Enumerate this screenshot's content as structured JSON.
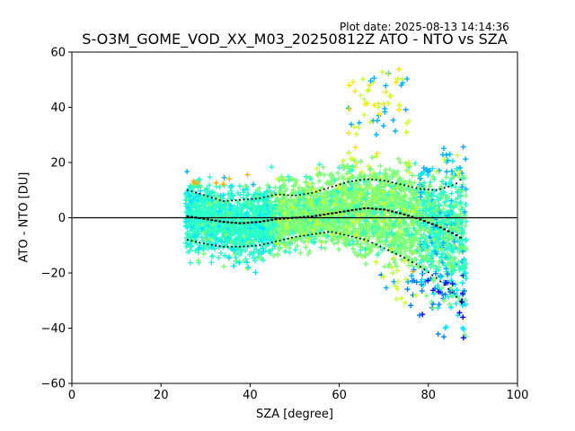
{
  "header": {
    "plot_date": "Plot date: 2025-08-13 14:14:36",
    "title": "S-O3M_GOME_VOD_XX_M03_20250812Z ATO - NTO vs SZA"
  },
  "chart_data": {
    "type": "scatter",
    "title": "S-O3M_GOME_VOD_XX_M03_20250812Z ATO - NTO vs SZA",
    "xlabel": "SZA [degree]",
    "ylabel": "ATO - NTO [DU]",
    "xlim": [
      0,
      100
    ],
    "ylim": [
      -60,
      60
    ],
    "xticks": [
      "0",
      "20",
      "40",
      "60",
      "80",
      "100"
    ],
    "yticks": [
      "−60",
      "−40",
      "−20",
      "0",
      "20",
      "40",
      "60"
    ],
    "grid": false,
    "zero_line": 0,
    "marker": "+",
    "colormap": "jet",
    "point_cloud_colors": [
      "#0000ff",
      "#0080ff",
      "#00b0ff",
      "#00e5ff",
      "#2bffc8",
      "#7cff79",
      "#c8ff2f",
      "#ffe600",
      "#ffb300"
    ],
    "sza_range": [
      25.5,
      88.5
    ],
    "binned_stats": {
      "sza": [
        26,
        30,
        34,
        38,
        42,
        46,
        50,
        54,
        58,
        62,
        66,
        70,
        74,
        78,
        82,
        86,
        88
      ],
      "median": [
        0.5,
        -0.5,
        -1.5,
        -2,
        -1.5,
        -0.5,
        0,
        0.5,
        1.5,
        2.5,
        3.5,
        3,
        1.5,
        -0.5,
        -3,
        -6,
        -8
      ],
      "upper": [
        10,
        8,
        6,
        6.5,
        7,
        8.5,
        8,
        9,
        11,
        13,
        14,
        13.5,
        12,
        10.5,
        10,
        12,
        15
      ],
      "lower": [
        -8,
        -9.5,
        -10.5,
        -10.5,
        -10,
        -8.5,
        -7,
        -6,
        -5,
        -6.5,
        -8,
        -11,
        -14,
        -17.5,
        -22,
        -28,
        -32
      ]
    }
  }
}
